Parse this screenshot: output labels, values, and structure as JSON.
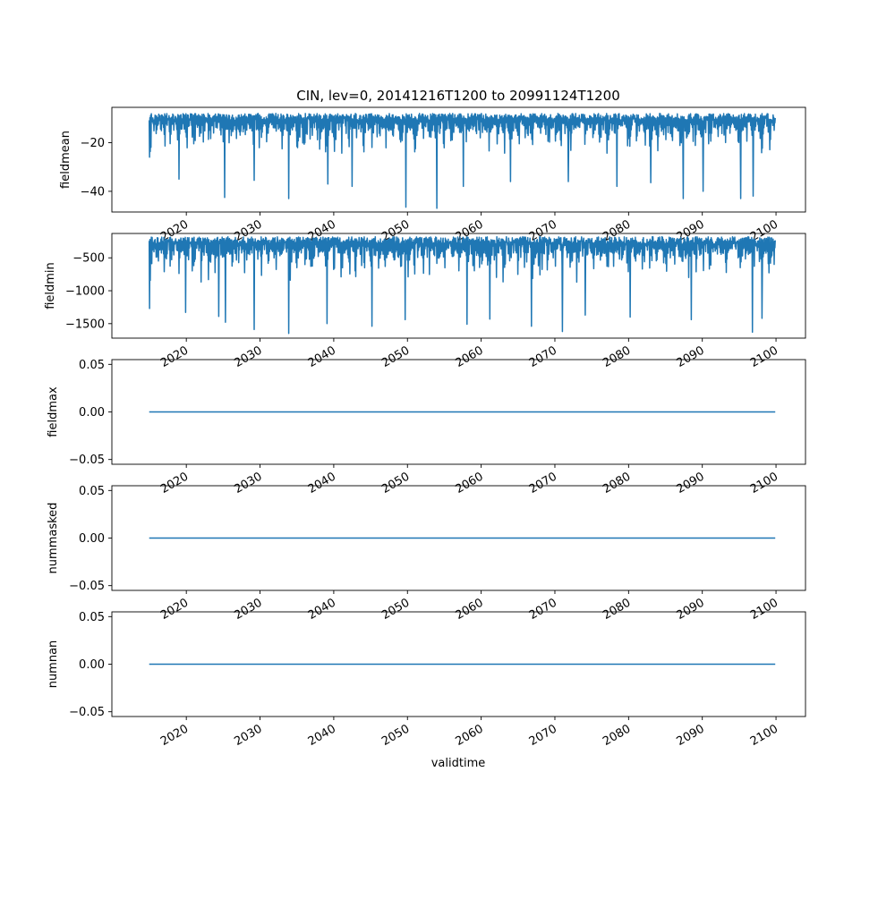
{
  "figure": {
    "title": "CIN, lev=0, 20141216T1200 to 20991124T1200",
    "xlabel": "validtime",
    "line_color": "#1f77b4"
  },
  "chart_data": [
    {
      "type": "line",
      "ylabel": "fieldmean",
      "x_range": [
        "2014-12-16",
        "2099-11-24"
      ],
      "xlim": [
        2009.9,
        2104.0
      ],
      "ylim": [
        -48.5,
        -5.5
      ],
      "yticks": [
        -40,
        -20
      ],
      "ytick_labels": [
        "−40",
        "−20"
      ],
      "xticks": [
        2020,
        2030,
        2040,
        2050,
        2060,
        2070,
        2080,
        2090,
        2100
      ],
      "xtick_labels": [
        "2020",
        "2030",
        "2040",
        "2050",
        "2060",
        "2070",
        "2080",
        "2090",
        "2100"
      ],
      "series": [
        {
          "summary": "seasonal oscillation",
          "upper_envelope": -8,
          "typical_low": -28,
          "dips": [
            {
              "x": 2015.0,
              "y": -26
            },
            {
              "x": 2019.0,
              "y": -35
            },
            {
              "x": 2025.2,
              "y": -42.5
            },
            {
              "x": 2029.2,
              "y": -35.5
            },
            {
              "x": 2033.9,
              "y": -43
            },
            {
              "x": 2039.2,
              "y": -37
            },
            {
              "x": 2042.5,
              "y": -38
            },
            {
              "x": 2049.8,
              "y": -46.5
            },
            {
              "x": 2054.0,
              "y": -47
            },
            {
              "x": 2057.6,
              "y": -38
            },
            {
              "x": 2064.0,
              "y": -36
            },
            {
              "x": 2071.8,
              "y": -36
            },
            {
              "x": 2078.4,
              "y": -38
            },
            {
              "x": 2083.0,
              "y": -36.5
            },
            {
              "x": 2087.4,
              "y": -43
            },
            {
              "x": 2090.1,
              "y": -40
            },
            {
              "x": 2095.2,
              "y": -43
            },
            {
              "x": 2096.9,
              "y": -42
            }
          ]
        }
      ]
    },
    {
      "type": "line",
      "ylabel": "fieldmin",
      "x_range": [
        "2014-12-16",
        "2099-11-24"
      ],
      "xlim": [
        2009.9,
        2104.0
      ],
      "ylim": [
        -1720,
        -130
      ],
      "yticks": [
        -1500,
        -1000,
        -500
      ],
      "ytick_labels": [
        "−1500",
        "−1000",
        "−500"
      ],
      "xticks": [
        2020,
        2030,
        2040,
        2050,
        2060,
        2070,
        2080,
        2090,
        2100
      ],
      "xtick_labels": [
        "2020",
        "2030",
        "2040",
        "2050",
        "2060",
        "2070",
        "2080",
        "2090",
        "2100"
      ],
      "series": [
        {
          "summary": "seasonal oscillation",
          "upper_envelope": -180,
          "typical_low": -950,
          "dips": [
            {
              "x": 2015.0,
              "y": -1270
            },
            {
              "x": 2019.9,
              "y": -1330
            },
            {
              "x": 2024.4,
              "y": -1390
            },
            {
              "x": 2025.3,
              "y": -1480
            },
            {
              "x": 2029.2,
              "y": -1590
            },
            {
              "x": 2033.9,
              "y": -1650
            },
            {
              "x": 2039.1,
              "y": -1500
            },
            {
              "x": 2045.2,
              "y": -1540
            },
            {
              "x": 2049.7,
              "y": -1440
            },
            {
              "x": 2058.1,
              "y": -1510
            },
            {
              "x": 2061.2,
              "y": -1430
            },
            {
              "x": 2066.8,
              "y": -1540
            },
            {
              "x": 2071.0,
              "y": -1620
            },
            {
              "x": 2074.1,
              "y": -1370
            },
            {
              "x": 2080.2,
              "y": -1400
            },
            {
              "x": 2088.5,
              "y": -1440
            },
            {
              "x": 2096.8,
              "y": -1630
            },
            {
              "x": 2098.1,
              "y": -1420
            }
          ]
        }
      ]
    },
    {
      "type": "line",
      "ylabel": "fieldmax",
      "x_range": [
        "2014-12-16",
        "2099-11-24"
      ],
      "xlim": [
        2009.9,
        2104.0
      ],
      "ylim": [
        -0.055,
        0.055
      ],
      "yticks": [
        -0.05,
        0.0,
        0.05
      ],
      "ytick_labels": [
        "−0.05",
        "0.00",
        "0.05"
      ],
      "xticks": [
        2020,
        2030,
        2040,
        2050,
        2060,
        2070,
        2080,
        2090,
        2100
      ],
      "xtick_labels": [
        "2020",
        "2030",
        "2040",
        "2050",
        "2060",
        "2070",
        "2080",
        "2090",
        "2100"
      ],
      "series": [
        {
          "constant": 0.0
        }
      ]
    },
    {
      "type": "line",
      "ylabel": "nummasked",
      "x_range": [
        "2014-12-16",
        "2099-11-24"
      ],
      "xlim": [
        2009.9,
        2104.0
      ],
      "ylim": [
        -0.055,
        0.055
      ],
      "yticks": [
        -0.05,
        0.0,
        0.05
      ],
      "ytick_labels": [
        "−0.05",
        "0.00",
        "0.05"
      ],
      "xticks": [
        2020,
        2030,
        2040,
        2050,
        2060,
        2070,
        2080,
        2090,
        2100
      ],
      "xtick_labels": [
        "2020",
        "2030",
        "2040",
        "2050",
        "2060",
        "2070",
        "2080",
        "2090",
        "2100"
      ],
      "series": [
        {
          "constant": 0.0
        }
      ]
    },
    {
      "type": "line",
      "ylabel": "numnan",
      "x_range": [
        "2014-12-16",
        "2099-11-24"
      ],
      "xlim": [
        2009.9,
        2104.0
      ],
      "ylim": [
        -0.055,
        0.055
      ],
      "yticks": [
        -0.05,
        0.0,
        0.05
      ],
      "ytick_labels": [
        "−0.05",
        "0.00",
        "0.05"
      ],
      "xticks": [
        2020,
        2030,
        2040,
        2050,
        2060,
        2070,
        2080,
        2090,
        2100
      ],
      "xtick_labels": [
        "2020",
        "2030",
        "2040",
        "2050",
        "2060",
        "2070",
        "2080",
        "2090",
        "2100"
      ],
      "series": [
        {
          "constant": 0.0
        }
      ]
    }
  ]
}
